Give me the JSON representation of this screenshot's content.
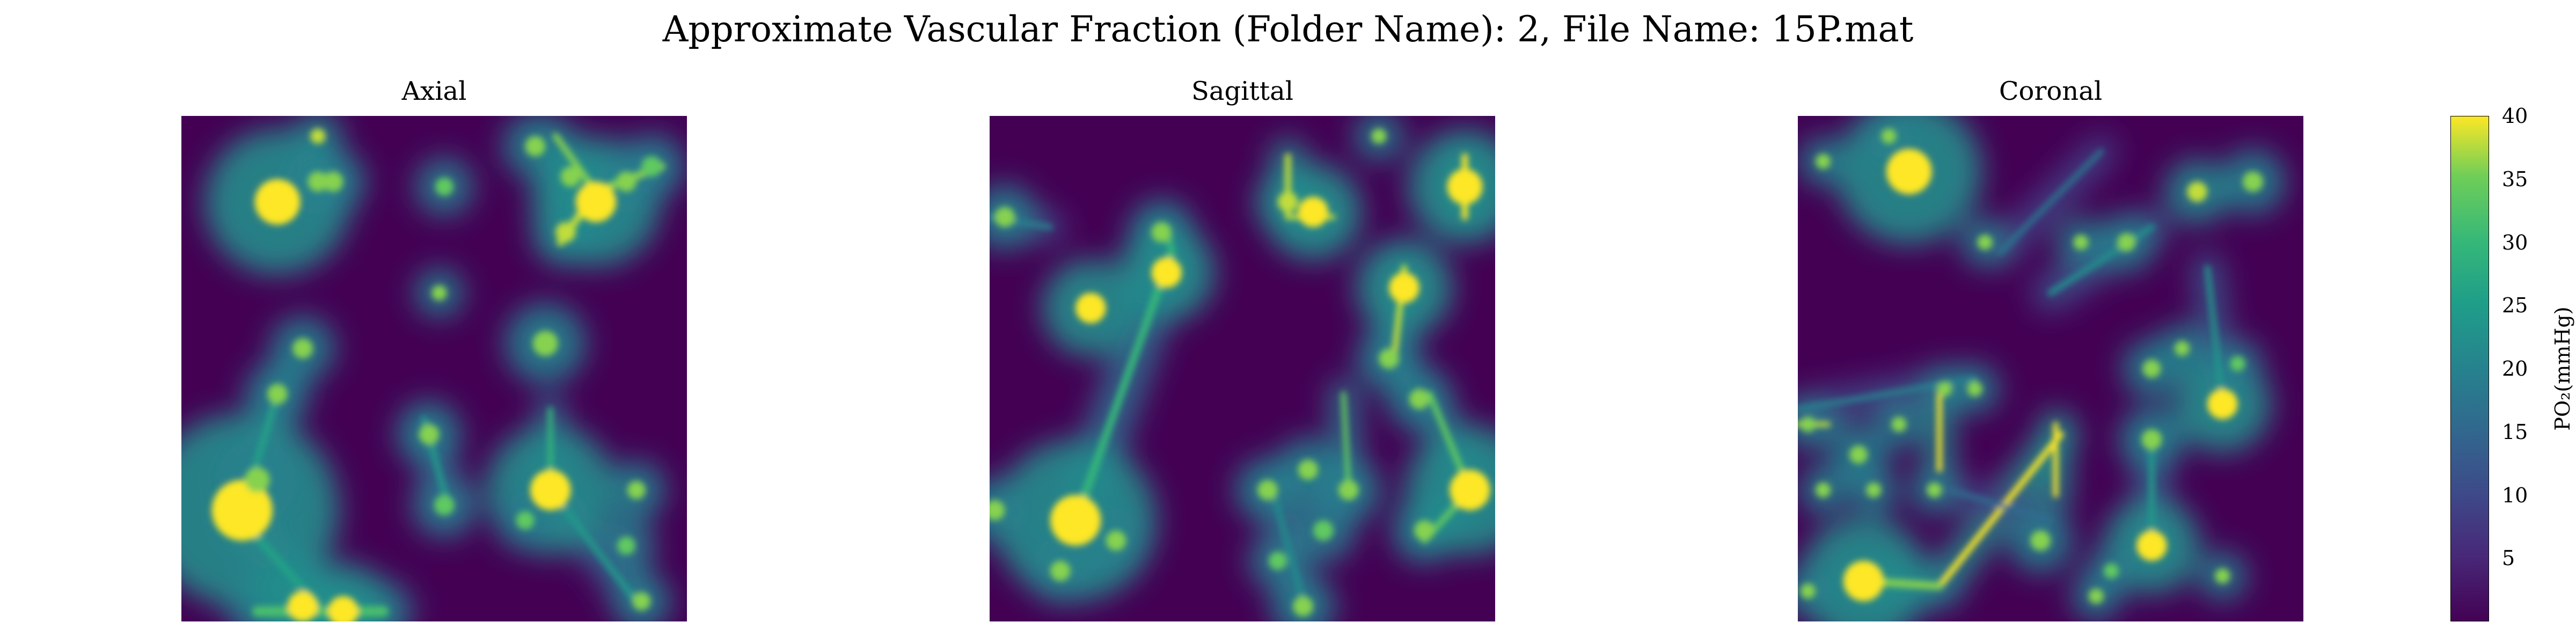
{
  "figure": {
    "title": "Approximate Vascular Fraction (Folder Name): 2, File Name: 15P.mat"
  },
  "chart_data": {
    "type": "heatmap",
    "colormap": "viridis",
    "grid": false,
    "panels": [
      {
        "title": "Axial",
        "hotspots": [
          {
            "x": 0.19,
            "y": 0.17,
            "r": 0.045,
            "v": 40
          },
          {
            "x": 0.3,
            "y": 0.13,
            "r": 0.02,
            "v": 36
          },
          {
            "x": 0.27,
            "y": 0.13,
            "r": 0.02,
            "v": 36
          },
          {
            "x": 0.27,
            "y": 0.04,
            "r": 0.015,
            "v": 38
          },
          {
            "x": 0.52,
            "y": 0.14,
            "r": 0.018,
            "v": 34
          },
          {
            "x": 0.7,
            "y": 0.06,
            "r": 0.02,
            "v": 36
          },
          {
            "x": 0.77,
            "y": 0.12,
            "r": 0.02,
            "v": 36
          },
          {
            "x": 0.82,
            "y": 0.17,
            "r": 0.04,
            "v": 40
          },
          {
            "x": 0.88,
            "y": 0.13,
            "r": 0.02,
            "v": 36
          },
          {
            "x": 0.93,
            "y": 0.1,
            "r": 0.02,
            "v": 34
          },
          {
            "x": 0.76,
            "y": 0.23,
            "r": 0.02,
            "v": 38
          },
          {
            "x": 0.51,
            "y": 0.35,
            "r": 0.015,
            "v": 36
          },
          {
            "x": 0.72,
            "y": 0.45,
            "r": 0.025,
            "v": 36
          },
          {
            "x": 0.24,
            "y": 0.46,
            "r": 0.02,
            "v": 36
          },
          {
            "x": 0.19,
            "y": 0.55,
            "r": 0.02,
            "v": 36
          },
          {
            "x": 0.12,
            "y": 0.78,
            "r": 0.06,
            "v": 40
          },
          {
            "x": 0.15,
            "y": 0.72,
            "r": 0.025,
            "v": 36
          },
          {
            "x": 0.49,
            "y": 0.63,
            "r": 0.02,
            "v": 36
          },
          {
            "x": 0.52,
            "y": 0.77,
            "r": 0.02,
            "v": 34
          },
          {
            "x": 0.73,
            "y": 0.74,
            "r": 0.04,
            "v": 40
          },
          {
            "x": 0.68,
            "y": 0.8,
            "r": 0.018,
            "v": 34
          },
          {
            "x": 0.9,
            "y": 0.74,
            "r": 0.018,
            "v": 36
          },
          {
            "x": 0.88,
            "y": 0.85,
            "r": 0.018,
            "v": 34
          },
          {
            "x": 0.91,
            "y": 0.96,
            "r": 0.018,
            "v": 36
          },
          {
            "x": 0.24,
            "y": 0.97,
            "r": 0.03,
            "v": 40
          },
          {
            "x": 0.32,
            "y": 0.98,
            "r": 0.03,
            "v": 40
          }
        ],
        "segments": [
          {
            "x1": 0.74,
            "y1": 0.04,
            "x2": 0.82,
            "y2": 0.15,
            "w": 0.012,
            "v": 36
          },
          {
            "x1": 0.82,
            "y1": 0.15,
            "x2": 0.95,
            "y2": 0.1,
            "w": 0.015,
            "v": 36
          },
          {
            "x1": 0.82,
            "y1": 0.15,
            "x2": 0.75,
            "y2": 0.25,
            "w": 0.015,
            "v": 38
          },
          {
            "x1": 0.19,
            "y1": 0.55,
            "x2": 0.12,
            "y2": 0.78,
            "w": 0.012,
            "v": 26
          },
          {
            "x1": 0.73,
            "y1": 0.58,
            "x2": 0.73,
            "y2": 0.74,
            "w": 0.01,
            "v": 30
          },
          {
            "x1": 0.73,
            "y1": 0.74,
            "x2": 0.9,
            "y2": 0.96,
            "w": 0.012,
            "v": 24
          },
          {
            "x1": 0.48,
            "y1": 0.6,
            "x2": 0.53,
            "y2": 0.78,
            "w": 0.012,
            "v": 24
          },
          {
            "x1": 0.12,
            "y1": 0.8,
            "x2": 0.28,
            "y2": 0.98,
            "w": 0.014,
            "v": 26
          },
          {
            "x1": 0.15,
            "y1": 0.98,
            "x2": 0.4,
            "y2": 0.98,
            "w": 0.02,
            "v": 32
          }
        ]
      },
      {
        "title": "Sagittal",
        "hotspots": [
          {
            "x": 0.03,
            "y": 0.2,
            "r": 0.02,
            "v": 36
          },
          {
            "x": 0.2,
            "y": 0.38,
            "r": 0.03,
            "v": 40
          },
          {
            "x": 0.34,
            "y": 0.23,
            "r": 0.02,
            "v": 36
          },
          {
            "x": 0.35,
            "y": 0.31,
            "r": 0.03,
            "v": 40
          },
          {
            "x": 0.59,
            "y": 0.17,
            "r": 0.02,
            "v": 38
          },
          {
            "x": 0.64,
            "y": 0.19,
            "r": 0.03,
            "v": 40
          },
          {
            "x": 0.77,
            "y": 0.04,
            "r": 0.015,
            "v": 36
          },
          {
            "x": 0.94,
            "y": 0.14,
            "r": 0.035,
            "v": 40
          },
          {
            "x": 0.82,
            "y": 0.34,
            "r": 0.03,
            "v": 40
          },
          {
            "x": 0.79,
            "y": 0.48,
            "r": 0.02,
            "v": 36
          },
          {
            "x": 0.17,
            "y": 0.8,
            "r": 0.05,
            "v": 40
          },
          {
            "x": 0.25,
            "y": 0.84,
            "r": 0.02,
            "v": 36
          },
          {
            "x": 0.14,
            "y": 0.9,
            "r": 0.02,
            "v": 36
          },
          {
            "x": 0.01,
            "y": 0.78,
            "r": 0.02,
            "v": 36
          },
          {
            "x": 0.55,
            "y": 0.74,
            "r": 0.02,
            "v": 36
          },
          {
            "x": 0.63,
            "y": 0.7,
            "r": 0.02,
            "v": 36
          },
          {
            "x": 0.71,
            "y": 0.74,
            "r": 0.02,
            "v": 36
          },
          {
            "x": 0.66,
            "y": 0.82,
            "r": 0.02,
            "v": 34
          },
          {
            "x": 0.86,
            "y": 0.82,
            "r": 0.02,
            "v": 36
          },
          {
            "x": 0.95,
            "y": 0.74,
            "r": 0.04,
            "v": 40
          },
          {
            "x": 0.85,
            "y": 0.56,
            "r": 0.02,
            "v": 36
          },
          {
            "x": 0.62,
            "y": 0.97,
            "r": 0.02,
            "v": 36
          },
          {
            "x": 0.57,
            "y": 0.88,
            "r": 0.018,
            "v": 34
          }
        ],
        "segments": [
          {
            "x1": 0.17,
            "y1": 0.8,
            "x2": 0.36,
            "y2": 0.27,
            "w": 0.015,
            "v": 30
          },
          {
            "x1": 0.36,
            "y1": 0.27,
            "x2": 0.35,
            "y2": 0.22,
            "w": 0.012,
            "v": 30
          },
          {
            "x1": 0.59,
            "y1": 0.08,
            "x2": 0.59,
            "y2": 0.2,
            "w": 0.012,
            "v": 38
          },
          {
            "x1": 0.59,
            "y1": 0.2,
            "x2": 0.68,
            "y2": 0.2,
            "w": 0.01,
            "v": 38
          },
          {
            "x1": 0.94,
            "y1": 0.08,
            "x2": 0.94,
            "y2": 0.2,
            "w": 0.012,
            "v": 40
          },
          {
            "x1": 0.82,
            "y1": 0.3,
            "x2": 0.8,
            "y2": 0.48,
            "w": 0.012,
            "v": 38
          },
          {
            "x1": 0.7,
            "y1": 0.55,
            "x2": 0.71,
            "y2": 0.74,
            "w": 0.01,
            "v": 34
          },
          {
            "x1": 0.87,
            "y1": 0.55,
            "x2": 0.95,
            "y2": 0.74,
            "w": 0.012,
            "v": 34
          },
          {
            "x1": 0.95,
            "y1": 0.74,
            "x2": 0.86,
            "y2": 0.84,
            "w": 0.012,
            "v": 34
          },
          {
            "x1": 0.56,
            "y1": 0.74,
            "x2": 0.62,
            "y2": 0.96,
            "w": 0.01,
            "v": 22
          },
          {
            "x1": 0.0,
            "y1": 0.2,
            "x2": 0.12,
            "y2": 0.22,
            "w": 0.01,
            "v": 20
          }
        ]
      },
      {
        "title": "Coronal",
        "hotspots": [
          {
            "x": 0.22,
            "y": 0.11,
            "r": 0.045,
            "v": 40
          },
          {
            "x": 0.05,
            "y": 0.09,
            "r": 0.015,
            "v": 36
          },
          {
            "x": 0.18,
            "y": 0.04,
            "r": 0.015,
            "v": 36
          },
          {
            "x": 0.37,
            "y": 0.25,
            "r": 0.015,
            "v": 36
          },
          {
            "x": 0.56,
            "y": 0.25,
            "r": 0.015,
            "v": 36
          },
          {
            "x": 0.65,
            "y": 0.25,
            "r": 0.018,
            "v": 36
          },
          {
            "x": 0.79,
            "y": 0.15,
            "r": 0.02,
            "v": 38
          },
          {
            "x": 0.9,
            "y": 0.13,
            "r": 0.02,
            "v": 36
          },
          {
            "x": 0.76,
            "y": 0.46,
            "r": 0.015,
            "v": 36
          },
          {
            "x": 0.7,
            "y": 0.5,
            "r": 0.018,
            "v": 36
          },
          {
            "x": 0.84,
            "y": 0.57,
            "r": 0.03,
            "v": 40
          },
          {
            "x": 0.7,
            "y": 0.64,
            "r": 0.02,
            "v": 36
          },
          {
            "x": 0.87,
            "y": 0.49,
            "r": 0.015,
            "v": 34
          },
          {
            "x": 0.7,
            "y": 0.85,
            "r": 0.03,
            "v": 40
          },
          {
            "x": 0.35,
            "y": 0.54,
            "r": 0.015,
            "v": 36
          },
          {
            "x": 0.29,
            "y": 0.54,
            "r": 0.015,
            "v": 36
          },
          {
            "x": 0.2,
            "y": 0.61,
            "r": 0.015,
            "v": 36
          },
          {
            "x": 0.02,
            "y": 0.61,
            "r": 0.015,
            "v": 36
          },
          {
            "x": 0.12,
            "y": 0.67,
            "r": 0.018,
            "v": 36
          },
          {
            "x": 0.05,
            "y": 0.74,
            "r": 0.015,
            "v": 36
          },
          {
            "x": 0.15,
            "y": 0.74,
            "r": 0.015,
            "v": 36
          },
          {
            "x": 0.27,
            "y": 0.74,
            "r": 0.015,
            "v": 36
          },
          {
            "x": 0.13,
            "y": 0.92,
            "r": 0.04,
            "v": 40
          },
          {
            "x": 0.48,
            "y": 0.84,
            "r": 0.02,
            "v": 36
          },
          {
            "x": 0.62,
            "y": 0.9,
            "r": 0.015,
            "v": 34
          },
          {
            "x": 0.59,
            "y": 0.95,
            "r": 0.015,
            "v": 36
          },
          {
            "x": 0.84,
            "y": 0.91,
            "r": 0.015,
            "v": 36
          },
          {
            "x": 0.02,
            "y": 0.94,
            "r": 0.015,
            "v": 36
          }
        ],
        "segments": [
          {
            "x1": 0.28,
            "y1": 0.55,
            "x2": 0.28,
            "y2": 0.7,
            "w": 0.01,
            "v": 40
          },
          {
            "x1": 0.51,
            "y1": 0.61,
            "x2": 0.51,
            "y2": 0.75,
            "w": 0.01,
            "v": 40
          },
          {
            "x1": 0.28,
            "y1": 0.93,
            "x2": 0.52,
            "y2": 0.63,
            "w": 0.012,
            "v": 40
          },
          {
            "x1": 0.13,
            "y1": 0.92,
            "x2": 0.28,
            "y2": 0.93,
            "w": 0.015,
            "v": 36
          },
          {
            "x1": 0.0,
            "y1": 0.61,
            "x2": 0.06,
            "y2": 0.61,
            "w": 0.01,
            "v": 38
          },
          {
            "x1": 0.5,
            "y1": 0.35,
            "x2": 0.7,
            "y2": 0.22,
            "w": 0.012,
            "v": 22
          },
          {
            "x1": 0.4,
            "y1": 0.27,
            "x2": 0.6,
            "y2": 0.07,
            "w": 0.01,
            "v": 18
          },
          {
            "x1": 0.81,
            "y1": 0.3,
            "x2": 0.84,
            "y2": 0.57,
            "w": 0.01,
            "v": 24
          },
          {
            "x1": 0.0,
            "y1": 0.58,
            "x2": 0.35,
            "y2": 0.52,
            "w": 0.01,
            "v": 20
          },
          {
            "x1": 0.7,
            "y1": 0.64,
            "x2": 0.7,
            "y2": 0.85,
            "w": 0.012,
            "v": 24
          },
          {
            "x1": 0.3,
            "y1": 0.74,
            "x2": 0.5,
            "y2": 0.8,
            "w": 0.01,
            "v": 16
          }
        ]
      }
    ],
    "colorbar": {
      "label": "PO₂(mmHg)",
      "vmin": 0,
      "vmax": 40,
      "ticks": [
        40,
        35,
        30,
        25,
        20,
        15,
        10,
        5
      ]
    }
  }
}
